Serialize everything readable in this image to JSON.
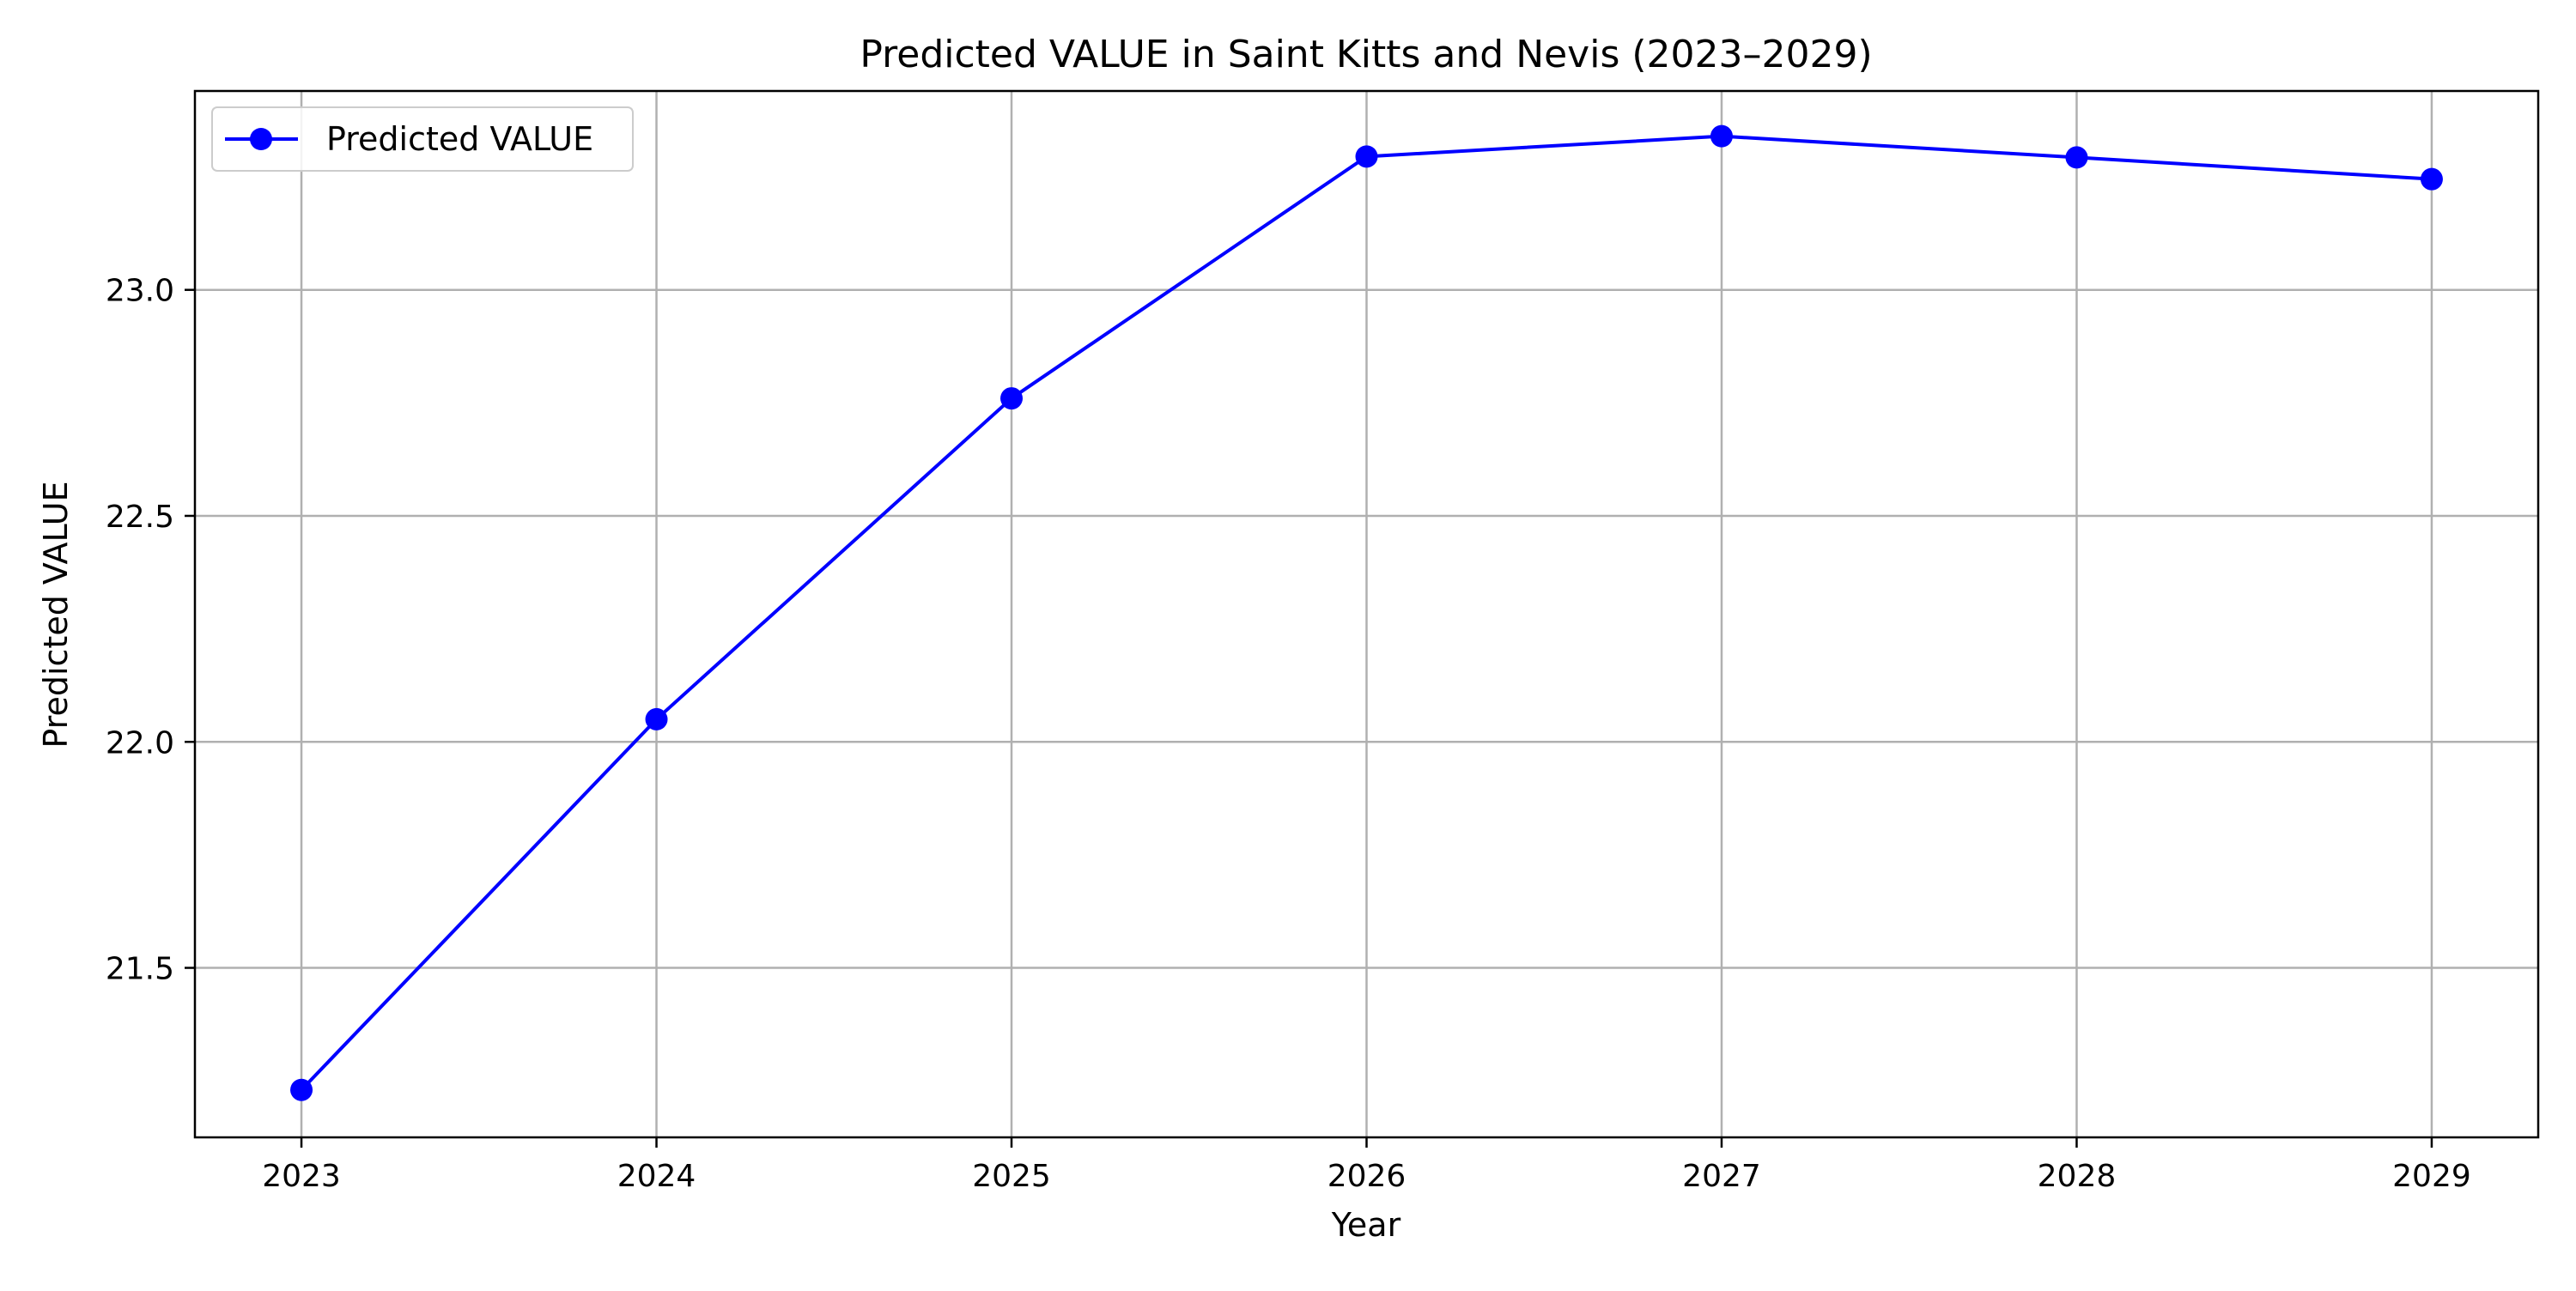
{
  "chart_data": {
    "type": "line",
    "title": "Predicted VALUE in Saint Kitts and Nevis (2023–2029)",
    "xlabel": "Year",
    "ylabel": "Predicted VALUE",
    "x": [
      2023,
      2024,
      2025,
      2026,
      2027,
      2028,
      2029
    ],
    "x_tick_labels": [
      "2023",
      "2024",
      "2025",
      "2026",
      "2027",
      "2028",
      "2029"
    ],
    "y_ticks": [
      21.5,
      22.0,
      22.5,
      23.0
    ],
    "y_tick_labels": [
      "21.5",
      "22.0",
      "22.5",
      "23.0"
    ],
    "xlim": [
      2022.7,
      2029.3
    ],
    "ylim": [
      21.125,
      23.44
    ],
    "grid": true,
    "legend_position": "top-left",
    "series": [
      {
        "name": "Predicted VALUE",
        "color": "#0000ff",
        "marker": "circle",
        "values": [
          21.23,
          22.05,
          22.76,
          23.295,
          23.34,
          23.293,
          23.245
        ]
      }
    ]
  }
}
